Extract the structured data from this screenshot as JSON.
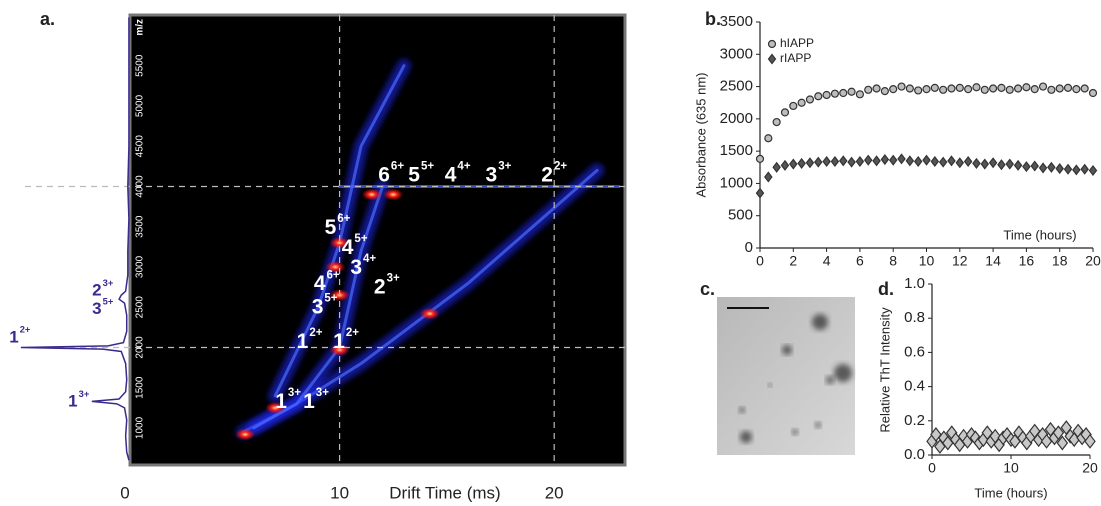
{
  "chart_data": [
    {
      "type": "heatmap",
      "panel_label": "a.",
      "xlabel": "Drift Time (ms)",
      "ylabel": "m/z",
      "xlim": [
        0,
        23.3
      ],
      "xticks": [
        0,
        10,
        20
      ],
      "ylim": [
        540,
        6130
      ],
      "yticks": [
        1000,
        1500,
        2000,
        2500,
        3000,
        3500,
        4000,
        4500,
        5000,
        5500
      ],
      "xgrid": [
        10,
        20
      ],
      "ygrid": [
        2000,
        4000
      ],
      "bands": [
        {
          "x": [
            5.5,
            8,
            11,
            14,
            16,
            19,
            22
          ],
          "y": [
            950,
            1300,
            1800,
            2400,
            2800,
            3500,
            4200
          ]
        },
        {
          "x": [
            6,
            8,
            10,
            10.5,
            11,
            12
          ],
          "y": [
            1000,
            1300,
            2000,
            2600,
            3200,
            4000
          ]
        },
        {
          "x": [
            7,
            9,
            10,
            11,
            13
          ],
          "y": [
            1400,
            2500,
            3300,
            4500,
            5500
          ]
        },
        {
          "x": [
            10,
            14,
            18,
            23
          ],
          "y": [
            4000,
            4000,
            4000,
            4000
          ]
        }
      ],
      "peaks": {
        "x": [
          10,
          7,
          10,
          9.8,
          10,
          11.5,
          12.5,
          14.2,
          5.6
        ],
        "y": [
          1970,
          1250,
          2650,
          3000,
          3300,
          3900,
          3900,
          2420,
          920
        ]
      },
      "annotations": [
        {
          "label": "6",
          "charge": "6+",
          "x": 11.8,
          "y": 4130
        },
        {
          "label": "5",
          "charge": "5+",
          "x": 13.2,
          "y": 4130
        },
        {
          "label": "4",
          "charge": "4+",
          "x": 14.9,
          "y": 4130
        },
        {
          "label": "3",
          "charge": "3+",
          "x": 16.8,
          "y": 4130
        },
        {
          "label": "2",
          "charge": "2+",
          "x": 19.4,
          "y": 4130
        },
        {
          "label": "5",
          "charge": "6+",
          "x": 9.3,
          "y": 3480
        },
        {
          "label": "4",
          "charge": "5+",
          "x": 10.1,
          "y": 3230
        },
        {
          "label": "3",
          "charge": "4+",
          "x": 10.5,
          "y": 2980
        },
        {
          "label": "4",
          "charge": "6+",
          "x": 8.8,
          "y": 2780
        },
        {
          "label": "2",
          "charge": "3+",
          "x": 11.6,
          "y": 2740
        },
        {
          "label": "3",
          "charge": "5+",
          "x": 8.7,
          "y": 2490
        },
        {
          "label": "1",
          "charge": "2+",
          "x": 8.0,
          "y": 2060
        },
        {
          "label": "1",
          "charge": "2+",
          "x": 9.7,
          "y": 2060
        },
        {
          "label": "1",
          "charge": "3+",
          "x": 7.0,
          "y": 1320
        },
        {
          "label": "1",
          "charge": "3+",
          "x": 8.3,
          "y": 1320
        }
      ],
      "spectrum": {
        "color": "#3b2a8c",
        "xlim": [
          0,
          110
        ],
        "mz": [
          600,
          700,
          900,
          1100,
          1250,
          1300,
          1330,
          1360,
          1450,
          1600,
          1800,
          1950,
          1980,
          2000,
          2020,
          2060,
          2200,
          2400,
          2550,
          2600,
          2650,
          2700,
          2900,
          3200,
          3600,
          4000,
          4500,
          5000,
          5500,
          6100
        ],
        "intensity": [
          1,
          3,
          4,
          3,
          5,
          12,
          35,
          10,
          4,
          3,
          4,
          8,
          25,
          100,
          20,
          6,
          3,
          3,
          5,
          10,
          8,
          4,
          2,
          2,
          1,
          2,
          1,
          1,
          1,
          1
        ],
        "labels": [
          {
            "label": "2",
            "charge": "3+",
            "intensity": 26,
            "mz": 2700
          },
          {
            "label": "3",
            "charge": "5+",
            "intensity": 26,
            "mz": 2470
          },
          {
            "label": "1",
            "charge": "2+",
            "intensity": 102,
            "mz": 2120
          },
          {
            "label": "1",
            "charge": "3+",
            "intensity": 48,
            "mz": 1320
          }
        ]
      }
    },
    {
      "type": "scatter",
      "panel_label": "b.",
      "xlabel": "Time (hours)",
      "ylabel": "Absorbance (635 nm)",
      "xlim": [
        0,
        20
      ],
      "xticks": [
        0,
        2,
        4,
        6,
        8,
        10,
        12,
        14,
        16,
        18,
        20
      ],
      "ylim": [
        0,
        3500
      ],
      "yticks": [
        0,
        500,
        1000,
        1500,
        2000,
        2500,
        3000,
        3500
      ],
      "x": [
        0,
        0.5,
        1,
        1.5,
        2,
        2.5,
        3,
        3.5,
        4,
        4.5,
        5,
        5.5,
        6,
        6.5,
        7,
        7.5,
        8,
        8.5,
        9,
        9.5,
        10,
        10.5,
        11,
        11.5,
        12,
        12.5,
        13,
        13.5,
        14,
        14.5,
        15,
        15.5,
        16,
        16.5,
        17,
        17.5,
        18,
        18.5,
        19,
        19.5,
        20
      ],
      "series": [
        {
          "name": "hIAPP",
          "marker": "circle",
          "color": "#bdbdbd",
          "values": [
            1380,
            1700,
            1950,
            2100,
            2200,
            2250,
            2300,
            2350,
            2370,
            2390,
            2400,
            2420,
            2380,
            2450,
            2470,
            2430,
            2460,
            2500,
            2470,
            2440,
            2460,
            2480,
            2450,
            2470,
            2480,
            2460,
            2490,
            2450,
            2470,
            2480,
            2450,
            2470,
            2490,
            2460,
            2500,
            2450,
            2470,
            2480,
            2460,
            2470,
            2400
          ]
        },
        {
          "name": "rIAPP",
          "marker": "diamond",
          "color": "#555555",
          "values": [
            850,
            1100,
            1250,
            1280,
            1300,
            1310,
            1320,
            1330,
            1340,
            1340,
            1350,
            1330,
            1340,
            1360,
            1350,
            1370,
            1360,
            1380,
            1350,
            1340,
            1360,
            1340,
            1330,
            1350,
            1320,
            1340,
            1310,
            1300,
            1320,
            1290,
            1300,
            1280,
            1260,
            1270,
            1240,
            1250,
            1230,
            1220,
            1210,
            1220,
            1200
          ]
        }
      ]
    },
    {
      "type": "image",
      "panel_label": "c."
    },
    {
      "type": "scatter",
      "panel_label": "d.",
      "xlabel": "Time (hours)",
      "ylabel": "Relative ThT Intensity",
      "xlim": [
        0,
        20
      ],
      "xticks": [
        0,
        10,
        20
      ],
      "ylim": [
        0,
        1
      ],
      "yticks": [
        {
          "value": 0,
          "label": "0.0"
        },
        {
          "value": 0.2,
          "label": "0.2"
        },
        {
          "value": 0.4,
          "label": "0.4"
        },
        {
          "value": 0.6,
          "label": "0.6"
        },
        {
          "value": 0.8,
          "label": "0.8"
        },
        {
          "value": 1,
          "label": "1.0"
        }
      ],
      "x": [
        0,
        0.5,
        1,
        1.5,
        2,
        2.5,
        3,
        3.5,
        4,
        4.5,
        5,
        5.5,
        6,
        6.5,
        7,
        7.5,
        8,
        8.5,
        9,
        9.5,
        10,
        10.5,
        11,
        11.5,
        12,
        12.5,
        13,
        13.5,
        14,
        14.5,
        15,
        15.5,
        16,
        16.5,
        17,
        17.5,
        18,
        18.5,
        19,
        19.5,
        20
      ],
      "series": [
        {
          "marker": "diamond",
          "color": "#c8c8c8",
          "values": [
            0.08,
            0.12,
            0.05,
            0.1,
            0.07,
            0.13,
            0.09,
            0.06,
            0.11,
            0.08,
            0.12,
            0.1,
            0.07,
            0.09,
            0.13,
            0.08,
            0.11,
            0.06,
            0.1,
            0.12,
            0.09,
            0.08,
            0.13,
            0.1,
            0.07,
            0.11,
            0.14,
            0.09,
            0.12,
            0.08,
            0.15,
            0.1,
            0.13,
            0.07,
            0.16,
            0.11,
            0.09,
            0.14,
            0.1,
            0.12,
            0.08
          ]
        }
      ]
    }
  ]
}
